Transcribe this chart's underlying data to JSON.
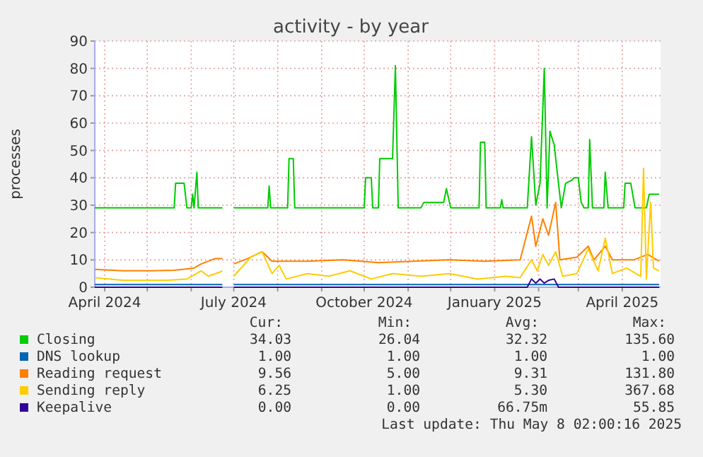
{
  "chart_data": {
    "type": "line",
    "title": "activity - by year",
    "ylabel": "processes",
    "xlim": [
      "2024-03-25",
      "2025-04-28"
    ],
    "xticks": [
      {
        "value": "2024-04-01",
        "label": "April 2024"
      },
      {
        "value": "2024-05-01",
        "label": null
      },
      {
        "value": "2024-06-01",
        "label": null
      },
      {
        "value": "2024-07-01",
        "label": "July 2024"
      },
      {
        "value": "2024-08-01",
        "label": null
      },
      {
        "value": "2024-09-01",
        "label": null
      },
      {
        "value": "2024-10-01",
        "label": "October 2024"
      },
      {
        "value": "2024-11-01",
        "label": null
      },
      {
        "value": "2024-12-01",
        "label": null
      },
      {
        "value": "2025-01-01",
        "label": "January 2025"
      },
      {
        "value": "2025-02-01",
        "label": null
      },
      {
        "value": "2025-03-01",
        "label": null
      },
      {
        "value": "2025-04-01",
        "label": "April 2025"
      }
    ],
    "ylim": [
      0,
      90
    ],
    "yticks": [
      0,
      10,
      20,
      30,
      40,
      50,
      60,
      70,
      80,
      90
    ],
    "grid": true,
    "legend": "bottom",
    "marker": "none",
    "line_style": "solid",
    "series": [
      {
        "name": "Closing",
        "color": "#00cc00",
        "x": [
          "2024-03-25",
          "2024-05-20",
          "2024-05-21",
          "2024-05-27",
          "2024-05-29",
          "2024-06-01",
          "2024-06-02",
          "2024-06-03",
          "2024-06-05",
          "2024-06-06",
          "2024-06-23",
          "2024-06-27",
          "2024-07-01",
          "2024-07-25",
          "2024-07-26",
          "2024-07-27",
          "2024-08-08",
          "2024-08-09",
          "2024-08-12",
          "2024-08-13",
          "2024-10-01",
          "2024-10-02",
          "2024-10-06",
          "2024-10-07",
          "2024-10-11",
          "2024-10-12",
          "2024-10-21",
          "2024-10-23",
          "2024-10-25",
          "2024-11-10",
          "2024-11-12",
          "2024-11-26",
          "2024-11-28",
          "2024-12-01",
          "2024-12-21",
          "2024-12-22",
          "2024-12-25",
          "2024-12-26",
          "2025-01-05",
          "2025-01-06",
          "2025-01-07",
          "2025-01-24",
          "2025-01-27",
          "2025-01-30",
          "2025-02-02",
          "2025-02-05",
          "2025-02-07",
          "2025-02-09",
          "2025-02-12",
          "2025-02-15",
          "2025-02-17",
          "2025-02-20",
          "2025-02-24",
          "2025-02-26",
          "2025-03-01",
          "2025-03-03",
          "2025-03-05",
          "2025-03-08",
          "2025-03-09",
          "2025-03-11",
          "2025-03-19",
          "2025-03-20",
          "2025-03-22",
          "2025-04-02",
          "2025-04-03",
          "2025-04-07",
          "2025-04-10",
          "2025-04-18",
          "2025-04-20",
          "2025-04-27"
        ],
        "values": [
          29,
          29,
          38,
          38,
          29,
          29,
          34,
          29,
          42,
          29,
          29,
          null,
          29,
          29,
          37,
          29,
          29,
          47,
          47,
          29,
          29,
          40,
          40,
          29,
          29,
          47,
          47,
          81,
          29,
          29,
          31,
          31,
          36,
          29,
          29,
          53,
          53,
          29,
          29,
          32,
          29,
          29,
          55,
          30,
          38,
          80,
          29,
          57,
          52,
          38,
          29,
          38,
          39,
          40,
          40,
          31,
          29,
          29,
          54,
          29,
          29,
          42,
          29,
          29,
          38,
          38,
          29,
          29,
          34,
          34
        ]
      },
      {
        "name": "DNS lookup",
        "color": "#0066b3",
        "x": [
          "2024-03-25",
          "2024-06-23",
          "2024-06-27",
          "2024-07-01",
          "2025-04-27"
        ],
        "values": [
          1,
          1,
          null,
          1,
          1
        ]
      },
      {
        "name": "Reading request",
        "color": "#ff8000",
        "x": [
          "2024-03-25",
          "2024-04-14",
          "2024-05-04",
          "2024-05-20",
          "2024-06-03",
          "2024-06-08",
          "2024-06-18",
          "2024-06-23",
          "2024-06-27",
          "2024-07-01",
          "2024-07-11",
          "2024-07-21",
          "2024-07-28",
          "2024-08-22",
          "2024-09-16",
          "2024-10-11",
          "2024-11-05",
          "2024-11-30",
          "2024-12-25",
          "2025-01-19",
          "2025-01-27",
          "2025-01-30",
          "2025-02-04",
          "2025-02-08",
          "2025-02-13",
          "2025-02-16",
          "2025-02-28",
          "2025-03-08",
          "2025-03-12",
          "2025-03-20",
          "2025-03-25",
          "2025-04-09",
          "2025-04-19",
          "2025-04-27"
        ],
        "values": [
          6.5,
          6,
          6,
          6.2,
          7,
          8.5,
          10.5,
          10.5,
          null,
          8.5,
          10.5,
          13,
          9.5,
          9.5,
          10,
          9,
          9.5,
          10,
          9.5,
          10,
          26,
          15,
          25,
          19,
          31,
          10,
          11,
          15,
          10,
          15,
          10,
          10,
          12,
          9.5
        ]
      },
      {
        "name": "Sending reply",
        "color": "#ffcc00",
        "x": [
          "2024-03-25",
          "2024-04-14",
          "2024-05-14",
          "2024-05-29",
          "2024-06-08",
          "2024-06-13",
          "2024-06-21",
          "2024-06-23",
          "2024-06-27",
          "2024-07-01",
          "2024-07-13",
          "2024-07-21",
          "2024-07-28",
          "2024-08-02",
          "2024-08-07",
          "2024-08-22",
          "2024-09-06",
          "2024-09-21",
          "2024-10-06",
          "2024-10-21",
          "2024-11-10",
          "2024-11-30",
          "2024-12-20",
          "2025-01-09",
          "2025-01-19",
          "2025-01-27",
          "2025-01-31",
          "2025-02-04",
          "2025-02-08",
          "2025-02-13",
          "2025-02-18",
          "2025-02-28",
          "2025-03-08",
          "2025-03-15",
          "2025-03-20",
          "2025-03-25",
          "2025-04-04",
          "2025-04-14",
          "2025-04-16",
          "2025-04-18",
          "2025-04-21",
          "2025-04-23",
          "2025-04-27"
        ],
        "values": [
          3.5,
          2.5,
          2.5,
          3,
          6,
          4,
          5.5,
          6,
          null,
          4,
          11,
          13,
          5,
          8,
          3,
          5,
          4,
          6,
          3,
          5,
          4,
          5,
          3,
          4,
          3.5,
          10,
          6,
          12,
          8,
          13,
          4,
          5,
          14,
          6,
          18,
          5,
          7,
          4,
          43.5,
          3,
          31,
          7,
          6
        ]
      },
      {
        "name": "Keepalive",
        "color": "#330099",
        "x": [
          "2024-03-25",
          "2024-06-23",
          "2024-06-27",
          "2024-07-01",
          "2025-01-24",
          "2025-01-27",
          "2025-01-30",
          "2025-02-02",
          "2025-02-05",
          "2025-02-08",
          "2025-02-12",
          "2025-02-15",
          "2025-04-27"
        ],
        "values": [
          0,
          0,
          null,
          0,
          0,
          3,
          1.5,
          3,
          1.5,
          2.5,
          3,
          0,
          0
        ]
      }
    ],
    "annotations": [
      "Cur:",
      "Min:",
      "Avg:",
      "Max:",
      "34.03",
      "26.04",
      "32.32",
      "135.60",
      "1.00",
      "1.00",
      "1.00",
      "1.00",
      "9.56",
      "5.00",
      "9.31",
      "131.80",
      "6.25",
      "1.00",
      "5.30",
      "367.68",
      "0.00",
      "0.00",
      "66.75m",
      "55.85",
      "Last update: Thu May  8 02:00:16 2025"
    ]
  }
}
